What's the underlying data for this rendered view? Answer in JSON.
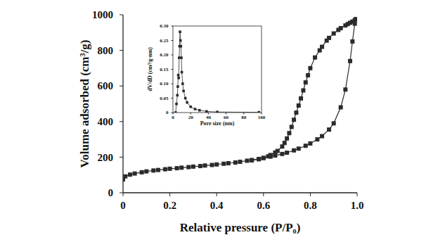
{
  "chart_data": [
    {
      "type": "line",
      "x_label": "Relative pressure (P/P₀)",
      "y_label": "Volume adsorbed (cm³/g)",
      "xlim": [
        0,
        1
      ],
      "ylim": [
        0,
        1000
      ],
      "xticks": [
        0,
        0.2,
        0.4,
        0.6,
        0.8,
        {
          "value": 1,
          "label": "1.0"
        }
      ],
      "yticks": [
        0,
        200,
        400,
        600,
        800,
        1000
      ],
      "grid": false,
      "marker": "square",
      "line_style": "solid",
      "color": "#2b2b2b",
      "series": [
        {
          "x": [
            0.0,
            0.01,
            0.03,
            0.05,
            0.08,
            0.1,
            0.13,
            0.15,
            0.18,
            0.2,
            0.23,
            0.25,
            0.28,
            0.3,
            0.33,
            0.35,
            0.38,
            0.4,
            0.43,
            0.45,
            0.48,
            0.5,
            0.53,
            0.55,
            0.58,
            0.6,
            0.63,
            0.65,
            0.68,
            0.7,
            0.73,
            0.75,
            0.78,
            0.8,
            0.83,
            0.85,
            0.88,
            0.9,
            0.93,
            0.95,
            0.97,
            0.98,
            0.99,
            0.995
          ],
          "values": [
            75,
            92,
            102,
            108,
            115,
            120,
            125,
            128,
            132,
            135,
            138,
            141,
            144,
            147,
            150,
            153,
            156,
            159,
            163,
            166,
            170,
            174,
            180,
            184,
            190,
            196,
            203,
            209,
            218,
            225,
            238,
            248,
            264,
            277,
            300,
            318,
            355,
            390,
            480,
            580,
            740,
            850,
            950,
            975
          ]
        },
        {
          "x": [
            0.995,
            0.99,
            0.98,
            0.97,
            0.96,
            0.95,
            0.93,
            0.92,
            0.9,
            0.88,
            0.87,
            0.85,
            0.84,
            0.82,
            0.8,
            0.79,
            0.78,
            0.77,
            0.76,
            0.75,
            0.74,
            0.73,
            0.72,
            0.71,
            0.7,
            0.69,
            0.68,
            0.66,
            0.65,
            0.63,
            0.62,
            0.6,
            0.58,
            0.55
          ],
          "values": [
            975,
            970,
            962,
            955,
            948,
            940,
            925,
            915,
            895,
            870,
            855,
            820,
            800,
            760,
            700,
            660,
            620,
            575,
            530,
            490,
            450,
            410,
            370,
            335,
            305,
            280,
            260,
            235,
            226,
            212,
            205,
            195,
            188,
            182
          ]
        }
      ]
    },
    {
      "type": "line",
      "x_label": "Pore size (nm)",
      "y_label": "dV/dD (cm³/g·nm)",
      "xlim": [
        0,
        100
      ],
      "ylim": [
        0,
        0.3
      ],
      "xticks": [
        0,
        20,
        40,
        60,
        80,
        100
      ],
      "yticks": [
        0,
        0.05,
        {
          "value": 0.1,
          "label": "0.10"
        },
        0.15,
        {
          "value": 0.2,
          "label": "0.20"
        },
        0.25,
        {
          "value": 0.3,
          "label": "0.30"
        }
      ],
      "grid": false,
      "marker": "square",
      "line_style": "solid",
      "color": "#2b2b2b",
      "series": [
        {
          "x": [
            3,
            4,
            5,
            5.5,
            6,
            6.5,
            7,
            7.5,
            8,
            8.5,
            9,
            9.5,
            10,
            11,
            12,
            14,
            16,
            20,
            25,
            30,
            38,
            50,
            97
          ],
          "values": [
            0.0,
            0.03,
            0.06,
            0.09,
            0.13,
            0.12,
            0.19,
            0.23,
            0.28,
            0.25,
            0.23,
            0.19,
            0.14,
            0.1,
            0.075,
            0.05,
            0.035,
            0.02,
            0.012,
            0.008,
            0.004,
            0.002,
            0.001
          ]
        }
      ]
    }
  ]
}
